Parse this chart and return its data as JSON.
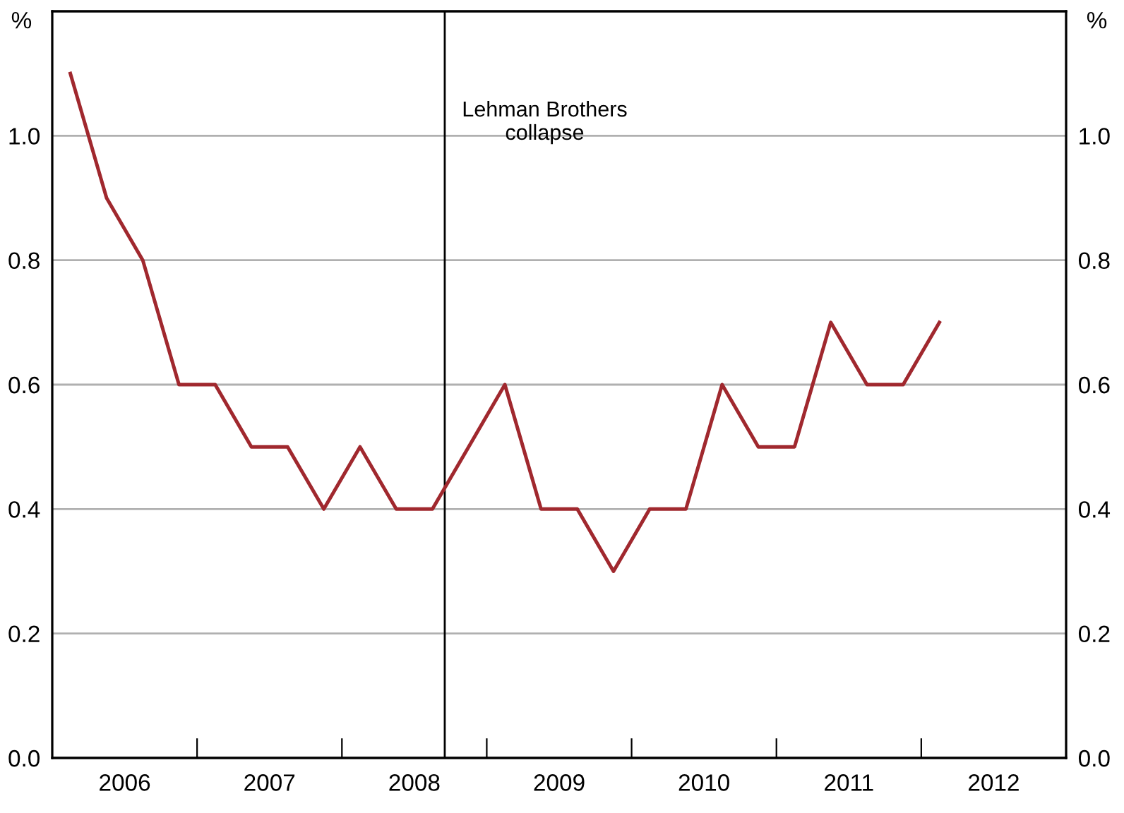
{
  "chart_data": {
    "type": "line",
    "x": [
      2006.125,
      2006.375,
      2006.625,
      2006.875,
      2007.125,
      2007.375,
      2007.625,
      2007.875,
      2008.125,
      2008.375,
      2008.625,
      2008.875,
      2009.125,
      2009.375,
      2009.625,
      2009.875,
      2010.125,
      2010.375,
      2010.625,
      2010.875,
      2011.125,
      2011.375,
      2011.625,
      2011.875,
      2012.125
    ],
    "series": [
      {
        "color": "#a0282e",
        "values": [
          1.1,
          0.9,
          0.8,
          0.6,
          0.6,
          0.5,
          0.5,
          0.4,
          0.5,
          0.4,
          0.4,
          0.5,
          0.6,
          0.4,
          0.4,
          0.3,
          0.4,
          0.4,
          0.6,
          0.5,
          0.5,
          0.7,
          0.6,
          0.6,
          0.7
        ]
      }
    ],
    "ylabel": "%",
    "y2label": "%",
    "xlim": [
      2006,
      2013
    ],
    "xticks": [
      {
        "value": 2006.5,
        "label": "2006"
      },
      {
        "value": 2007,
        "label": null
      },
      {
        "value": 2007.5,
        "label": "2007"
      },
      {
        "value": 2008,
        "label": null
      },
      {
        "value": 2008.5,
        "label": "2008"
      },
      {
        "value": 2009,
        "label": null
      },
      {
        "value": 2009.5,
        "label": "2009"
      },
      {
        "value": 2010,
        "label": null
      },
      {
        "value": 2010.5,
        "label": "2010"
      },
      {
        "value": 2011,
        "label": null
      },
      {
        "value": 2011.5,
        "label": "2011"
      },
      {
        "value": 2012,
        "label": null
      },
      {
        "value": 2012.5,
        "label": "2012"
      }
    ],
    "ylim": [
      0,
      1.2
    ],
    "yticks": [
      {
        "value": 0,
        "label": "0.0"
      },
      {
        "value": 0.2,
        "label": "0.2"
      },
      {
        "value": 0.4,
        "label": "0.4"
      },
      {
        "value": 0.6,
        "label": "0.6"
      },
      {
        "value": 0.8,
        "label": "0.8"
      },
      {
        "value": 1,
        "label": "1.0"
      }
    ],
    "y2lim": [
      0,
      1.2
    ],
    "y2ticks": [
      {
        "value": 0,
        "label": "0.0"
      },
      {
        "value": 0.2,
        "label": "0.2"
      },
      {
        "value": 0.4,
        "label": "0.4"
      },
      {
        "value": 0.6,
        "label": "0.6"
      },
      {
        "value": 0.8,
        "label": "0.8"
      },
      {
        "value": 1,
        "label": "1.0"
      }
    ],
    "ref_lines": [
      {
        "axis": "x",
        "value": 2008.71,
        "label": "Lehman Brothers\ncollapse",
        "color": "#000000"
      }
    ],
    "grid": "y",
    "line_style": "solid",
    "marker": "none"
  }
}
